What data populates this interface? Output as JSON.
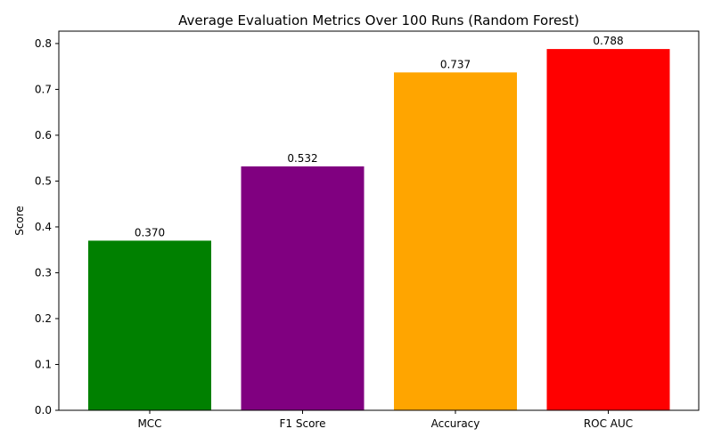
{
  "chart_data": {
    "type": "bar",
    "title": "Average Evaluation Metrics Over 100 Runs (Random Forest)",
    "xlabel": "",
    "ylabel": "Score",
    "categories": [
      "MCC",
      "F1 Score",
      "Accuracy",
      "ROC AUC"
    ],
    "values": [
      0.37,
      0.532,
      0.737,
      0.788
    ],
    "value_labels": [
      "0.370",
      "0.532",
      "0.737",
      "0.788"
    ],
    "colors": [
      "#008000",
      "#800080",
      "#FFA500",
      "#FF0000"
    ],
    "ylim": [
      0,
      0.827
    ],
    "yticks": [
      0.0,
      0.1,
      0.2,
      0.3,
      0.4,
      0.5,
      0.6,
      0.7,
      0.8
    ],
    "ytick_labels": [
      "0.0",
      "0.1",
      "0.2",
      "0.3",
      "0.4",
      "0.5",
      "0.6",
      "0.7",
      "0.8"
    ],
    "grid": false,
    "legend": false
  }
}
